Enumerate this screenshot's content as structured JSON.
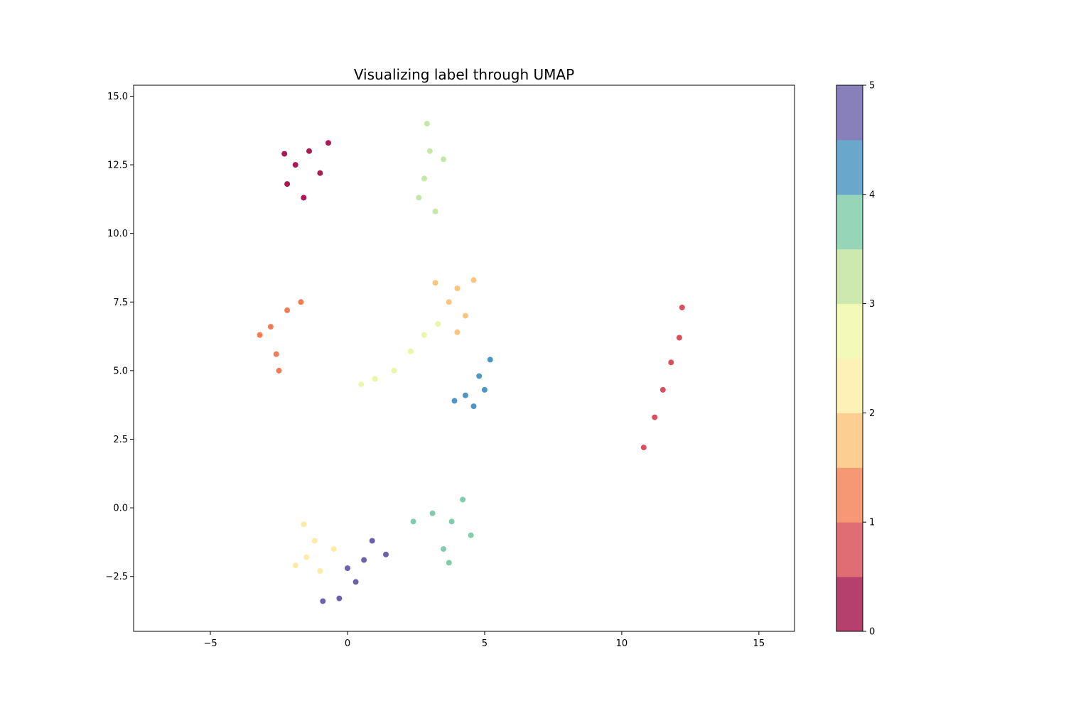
{
  "chart_data": {
    "type": "scatter",
    "title": "Visualizing label through UMAP",
    "xlabel": "",
    "ylabel": "",
    "xlim": [
      -7.8,
      16.3
    ],
    "ylim": [
      -4.5,
      15.4
    ],
    "xticks": [
      -5,
      0,
      5,
      10,
      15
    ],
    "xtick_labels": [
      "−5",
      "0",
      "5",
      "10",
      "15"
    ],
    "yticks": [
      -2.5,
      0.0,
      2.5,
      5.0,
      7.5,
      10.0,
      12.5,
      15.0
    ],
    "ytick_labels": [
      "−2.5",
      "0.0",
      "2.5",
      "5.0",
      "7.5",
      "10.0",
      "12.5",
      "15.0"
    ],
    "grid": false,
    "colormap": "Spectral",
    "colorbar": {
      "range": [
        0,
        5
      ],
      "ticks": [
        0,
        1,
        2,
        3,
        4,
        5
      ],
      "tick_labels": [
        "0",
        "1",
        "2",
        "3",
        "4",
        "5"
      ],
      "bins": 10,
      "colors": [
        "#b5406e",
        "#e06d74",
        "#f69874",
        "#fccf91",
        "#fdf1b6",
        "#f3f9b6",
        "#cde9b0",
        "#96d5b8",
        "#69a8cc",
        "#8880bb"
      ]
    },
    "clusters": [
      {
        "label": 0,
        "color": "#9e0142",
        "points": [
          [
            -1.9,
            12.5
          ],
          [
            -1.4,
            13.0
          ],
          [
            -2.2,
            11.8
          ],
          [
            -1.0,
            12.2
          ],
          [
            -1.6,
            11.3
          ],
          [
            -0.7,
            13.3
          ],
          [
            -2.3,
            12.9
          ]
        ]
      },
      {
        "label": 0.5,
        "color": "#d53e4f",
        "points": [
          [
            10.8,
            2.2
          ],
          [
            11.2,
            3.3
          ],
          [
            11.5,
            4.3
          ],
          [
            11.8,
            5.3
          ],
          [
            12.1,
            6.2
          ],
          [
            12.2,
            7.3
          ]
        ]
      },
      {
        "label": 1,
        "color": "#f46d43",
        "points": [
          [
            -2.8,
            6.6
          ],
          [
            -2.2,
            7.2
          ],
          [
            -1.7,
            7.5
          ],
          [
            -3.2,
            6.3
          ],
          [
            -2.6,
            5.6
          ],
          [
            -2.5,
            5.0
          ]
        ]
      },
      {
        "label": 2,
        "color": "#fdbe6f",
        "points": [
          [
            4.0,
            8.0
          ],
          [
            3.7,
            7.5
          ],
          [
            4.3,
            7.0
          ],
          [
            4.0,
            6.4
          ],
          [
            3.2,
            8.2
          ],
          [
            4.6,
            8.3
          ]
        ]
      },
      {
        "label": 2.5,
        "color": "#fee99d",
        "points": [
          [
            -1.5,
            -1.8
          ],
          [
            -1.2,
            -1.2
          ],
          [
            -1.6,
            -0.6
          ],
          [
            -1.0,
            -2.3
          ],
          [
            -0.5,
            -1.5
          ],
          [
            -1.9,
            -2.1
          ]
        ]
      },
      {
        "label": 3,
        "color": "#e9f69f",
        "points": [
          [
            1.7,
            5.0
          ],
          [
            2.3,
            5.7
          ],
          [
            2.8,
            6.3
          ],
          [
            1.0,
            4.7
          ],
          [
            0.5,
            4.5
          ],
          [
            3.3,
            6.7
          ]
        ]
      },
      {
        "label": 3.5,
        "color": "#bfe5a0",
        "points": [
          [
            3.0,
            13.0
          ],
          [
            2.8,
            12.0
          ],
          [
            2.9,
            14.0
          ],
          [
            2.6,
            11.3
          ],
          [
            3.2,
            10.8
          ],
          [
            3.5,
            12.7
          ]
        ]
      },
      {
        "label": 4,
        "color": "#74c7a5",
        "points": [
          [
            3.8,
            -0.5
          ],
          [
            3.5,
            -1.5
          ],
          [
            4.2,
            0.3
          ],
          [
            3.1,
            -0.2
          ],
          [
            4.5,
            -1.0
          ],
          [
            2.4,
            -0.5
          ],
          [
            3.7,
            -2.0
          ]
        ]
      },
      {
        "label": 4.5,
        "color": "#3a8ac0",
        "points": [
          [
            4.8,
            4.8
          ],
          [
            4.3,
            4.1
          ],
          [
            5.2,
            5.4
          ],
          [
            3.9,
            3.9
          ],
          [
            4.6,
            3.7
          ],
          [
            5.0,
            4.3
          ]
        ]
      },
      {
        "label": 5,
        "color": "#5e4fa2",
        "points": [
          [
            0.6,
            -1.9
          ],
          [
            0.3,
            -2.7
          ],
          [
            -0.3,
            -3.3
          ],
          [
            0.9,
            -1.2
          ],
          [
            1.4,
            -1.7
          ],
          [
            0.0,
            -2.2
          ],
          [
            -0.9,
            -3.4
          ]
        ]
      }
    ]
  }
}
